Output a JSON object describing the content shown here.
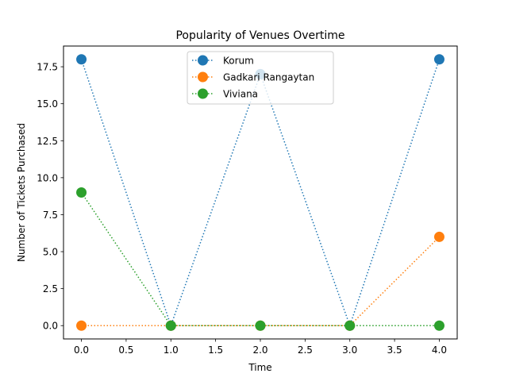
{
  "chart_data": {
    "type": "line",
    "title": "Popularity of Venues Overtime",
    "xlabel": "Time",
    "ylabel": "Number of Tickets Purchased",
    "x": [
      0,
      1,
      2,
      3,
      4
    ],
    "xlim": [
      -0.2,
      4.2
    ],
    "ylim": [
      -0.9,
      18.9
    ],
    "xticks": [
      0.0,
      0.5,
      1.0,
      1.5,
      2.0,
      2.5,
      3.0,
      3.5,
      4.0
    ],
    "xtick_labels": [
      "0.0",
      "0.5",
      "1.0",
      "1.5",
      "2.0",
      "2.5",
      "3.0",
      "3.5",
      "4.0"
    ],
    "yticks": [
      0.0,
      2.5,
      5.0,
      7.5,
      10.0,
      12.5,
      15.0,
      17.5
    ],
    "ytick_labels": [
      "0.0",
      "2.5",
      "5.0",
      "7.5",
      "10.0",
      "12.5",
      "15.0",
      "17.5"
    ],
    "line_style": "dotted",
    "marker": "circle",
    "grid": false,
    "legend_position": "top-center",
    "series": [
      {
        "name": "Korum",
        "color": "#1f77b4",
        "values": [
          18,
          0,
          17,
          0,
          18
        ]
      },
      {
        "name": "Gadkari Rangaytan",
        "color": "#ff7f0e",
        "values": [
          0,
          0,
          0,
          0,
          6
        ]
      },
      {
        "name": "Viviana",
        "color": "#2ca02c",
        "values": [
          9,
          0,
          0,
          0,
          0
        ]
      }
    ]
  }
}
